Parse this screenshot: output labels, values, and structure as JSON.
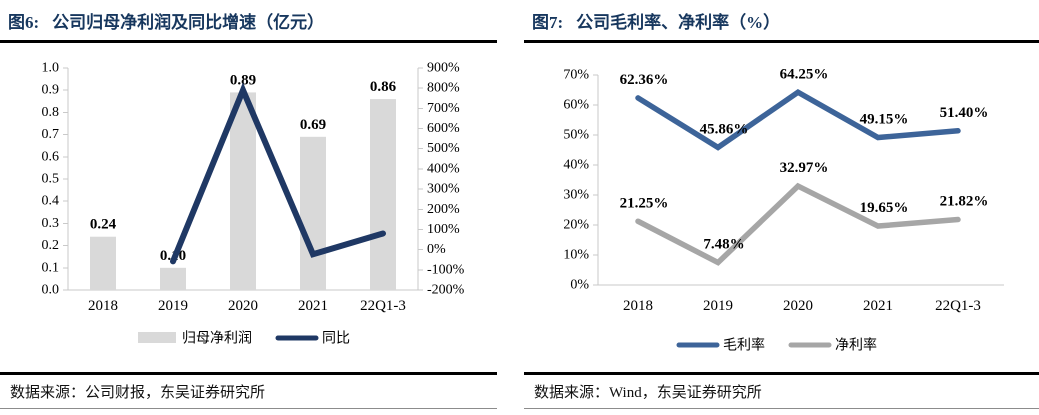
{
  "colors": {
    "title_navy": "#17375e",
    "yoy_line_navy": "#1f3864",
    "gross_margin_blue": "#3d6499",
    "net_margin_gray": "#a6a6a6",
    "bar_gray": "#d9d9d9",
    "axis_gray": "#c9c9c9",
    "rule_black": "#000000"
  },
  "panels": [
    {
      "title_prefix": "图6:",
      "title": "公司归母净利润及同比增速（亿元）",
      "source": "数据来源：公司财报，东吴证券研究所"
    },
    {
      "title_prefix": "图7:",
      "title": "公司毛利率、净利率（%）",
      "source": "数据来源：Wind，东吴证券研究所"
    }
  ],
  "chart_data": [
    {
      "type": "bar",
      "subtype": "bar-with-line-dual-axis",
      "title": "公司归母净利润及同比增速（亿元）",
      "categories": [
        "2018",
        "2019",
        "2020",
        "2021",
        "22Q1-3"
      ],
      "series": [
        {
          "name": "归母净利润",
          "type": "bar",
          "axis": "left",
          "color": "#d9d9d9",
          "values": [
            0.24,
            0.1,
            0.89,
            0.69,
            0.86
          ],
          "labels": [
            "0.24",
            "0.10",
            "0.89",
            "0.69",
            "0.86"
          ]
        },
        {
          "name": "同比",
          "type": "line",
          "axis": "right",
          "color": "#1f3864",
          "values": [
            null,
            -58,
            790,
            -23,
            80
          ],
          "values_note": "estimated from plot; no data labels shown",
          "labels": [
            null,
            null,
            null,
            null,
            null
          ]
        }
      ],
      "left_axis": {
        "min": 0,
        "max": 1.0,
        "step": 0.1,
        "ticks": [
          "0.0",
          "0.1",
          "0.2",
          "0.3",
          "0.4",
          "0.5",
          "0.6",
          "0.7",
          "0.8",
          "0.9",
          "1.0"
        ]
      },
      "right_axis": {
        "min": -200,
        "max": 900,
        "step": 100,
        "ticks": [
          "-200%",
          "-100%",
          "0%",
          "100%",
          "200%",
          "300%",
          "400%",
          "500%",
          "600%",
          "700%",
          "800%",
          "900%"
        ]
      },
      "legend": {
        "position": "bottom",
        "entries": [
          "归母净利润",
          "同比"
        ]
      },
      "grid": false
    },
    {
      "type": "line",
      "title": "公司毛利率、净利率（%）",
      "categories": [
        "2018",
        "2019",
        "2020",
        "2021",
        "22Q1-3"
      ],
      "series": [
        {
          "name": "毛利率",
          "color": "#3d6499",
          "values": [
            62.36,
            45.86,
            64.25,
            49.15,
            51.4
          ],
          "labels": [
            "62.36%",
            "45.86%",
            "64.25%",
            "49.15%",
            "51.40%"
          ]
        },
        {
          "name": "净利率",
          "color": "#a6a6a6",
          "values": [
            21.25,
            7.48,
            32.97,
            19.65,
            21.82
          ],
          "labels": [
            "21.25%",
            "7.48%",
            "32.97%",
            "19.65%",
            "21.82%"
          ]
        }
      ],
      "y_axis": {
        "min": 0,
        "max": 70,
        "step": 10,
        "ticks": [
          "0%",
          "10%",
          "20%",
          "30%",
          "40%",
          "50%",
          "60%",
          "70%"
        ]
      },
      "legend": {
        "position": "bottom",
        "entries": [
          "毛利率",
          "净利率"
        ]
      },
      "grid": false
    }
  ]
}
